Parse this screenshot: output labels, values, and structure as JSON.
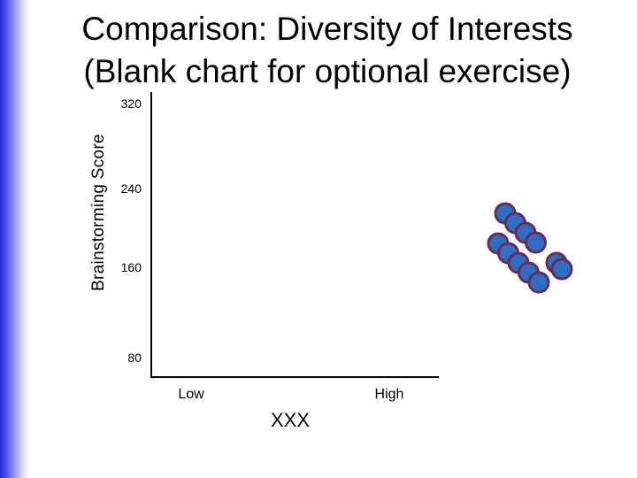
{
  "slide": {
    "title_line1": "Comparison: Diversity of Interests",
    "title_line2": "(Blank chart for optional exercise)",
    "accent_color": "#2a2ad8"
  },
  "chart_data": {
    "type": "scatter",
    "title": "",
    "xlabel": "XXX",
    "ylabel": "Brainstorming Score",
    "y_ticks": [
      "320",
      "240",
      "160",
      "80"
    ],
    "x_ticks": [
      "Low",
      "High"
    ],
    "ylim": [
      80,
      320
    ],
    "x_categories": [
      "Low",
      "High"
    ],
    "grid": false,
    "series": [
      {
        "values": []
      }
    ],
    "decorative_marker_fill": "#2c6fc4",
    "decorative_marker_stroke": "#6b2a55"
  }
}
